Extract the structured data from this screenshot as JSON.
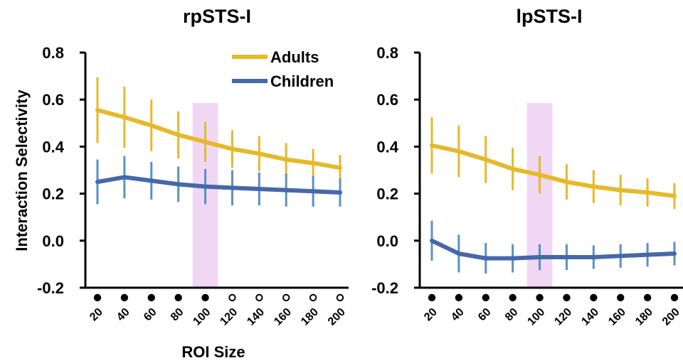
{
  "colors": {
    "adults": "#E5B92A",
    "children": "#4568A8",
    "error_children": "#5B8FC4",
    "highlight": "#F0D7F3",
    "axis": "#000000"
  },
  "shared": {
    "xlabel": "ROI Size",
    "ylabel": "Interaction Selectivity"
  },
  "chart_data": [
    {
      "type": "line",
      "title": "rpSTS-I",
      "xlabel": "ROI Size",
      "ylabel": "Interaction Selectivity",
      "ylim": [
        -0.2,
        0.8
      ],
      "yticks": [
        "-0.2",
        "0.0",
        "0.2",
        "0.4",
        "0.6",
        "0.8"
      ],
      "categories": [
        "20",
        "40",
        "60",
        "80",
        "100",
        "120",
        "140",
        "160",
        "180",
        "200"
      ],
      "highlight_category": "100",
      "significance": [
        "filled",
        "filled",
        "filled",
        "filled",
        "filled",
        "open",
        "open",
        "open",
        "open",
        "open"
      ],
      "legend": {
        "placement": "top-right"
      },
      "series": [
        {
          "name": "Adults",
          "color": "adults",
          "values": [
            0.555,
            0.525,
            0.49,
            0.45,
            0.42,
            0.39,
            0.37,
            0.345,
            0.33,
            0.31
          ],
          "errors": [
            0.14,
            0.13,
            0.11,
            0.1,
            0.085,
            0.08,
            0.075,
            0.07,
            0.06,
            0.055
          ]
        },
        {
          "name": "Children",
          "color": "children",
          "values": [
            0.25,
            0.27,
            0.255,
            0.24,
            0.23,
            0.225,
            0.22,
            0.215,
            0.21,
            0.205
          ],
          "errors": [
            0.095,
            0.09,
            0.08,
            0.075,
            0.075,
            0.075,
            0.07,
            0.07,
            0.065,
            0.06
          ]
        }
      ]
    },
    {
      "type": "line",
      "title": "lpSTS-I",
      "ylim": [
        -0.2,
        0.8
      ],
      "yticks": [
        "-0.2",
        "0.0",
        "0.2",
        "0.4",
        "0.6",
        "0.8"
      ],
      "categories": [
        "20",
        "40",
        "60",
        "80",
        "100",
        "120",
        "140",
        "160",
        "180",
        "200"
      ],
      "highlight_category": "100",
      "significance": [
        "filled",
        "filled",
        "filled",
        "filled",
        "filled",
        "filled",
        "filled",
        "filled",
        "filled",
        "filled"
      ],
      "series": [
        {
          "name": "Adults",
          "color": "adults",
          "values": [
            0.405,
            0.38,
            0.345,
            0.305,
            0.28,
            0.25,
            0.23,
            0.215,
            0.205,
            0.19
          ],
          "errors": [
            0.12,
            0.11,
            0.1,
            0.09,
            0.08,
            0.075,
            0.07,
            0.065,
            0.06,
            0.055
          ]
        },
        {
          "name": "Children",
          "color": "children",
          "values": [
            0.0,
            -0.055,
            -0.075,
            -0.075,
            -0.07,
            -0.07,
            -0.07,
            -0.065,
            -0.06,
            -0.055
          ],
          "errors": [
            0.085,
            0.08,
            0.065,
            0.06,
            0.055,
            0.055,
            0.05,
            0.05,
            0.05,
            0.05
          ]
        }
      ]
    }
  ]
}
